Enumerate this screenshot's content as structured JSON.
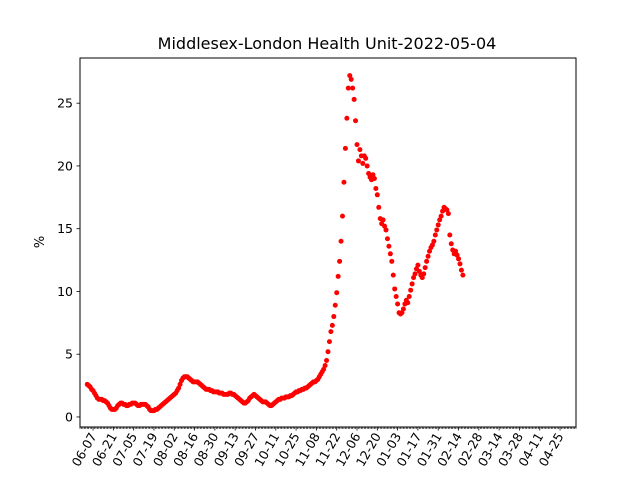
{
  "chart_data": {
    "type": "scatter",
    "title": "Middlesex-London Health Unit-2022-05-04",
    "xlabel": "",
    "ylabel": "%",
    "xlim": [
      "2021-05-29",
      "2022-05-06"
    ],
    "ylim": [
      -0.8,
      28.6
    ],
    "y_ticks": [
      0,
      5,
      10,
      15,
      20,
      25
    ],
    "x_ticks": [
      "06-07",
      "06-21",
      "07-05",
      "07-19",
      "08-02",
      "08-16",
      "08-30",
      "09-13",
      "09-27",
      "10-11",
      "10-25",
      "11-08",
      "11-22",
      "12-06",
      "12-20",
      "01-03",
      "01-17",
      "01-31",
      "02-14",
      "02-28",
      "03-14",
      "03-28",
      "04-11",
      "04-25"
    ],
    "marker_color": "#ff0000",
    "grid": false,
    "series": [
      {
        "points": [
          [
            "2021-06-03",
            2.6
          ],
          [
            "2021-06-04",
            2.5
          ],
          [
            "2021-06-05",
            2.4
          ],
          [
            "2021-06-06",
            2.2
          ],
          [
            "2021-06-07",
            2.1
          ],
          [
            "2021-06-08",
            1.9
          ],
          [
            "2021-06-09",
            1.7
          ],
          [
            "2021-06-10",
            1.5
          ],
          [
            "2021-06-11",
            1.4
          ],
          [
            "2021-06-12",
            1.4
          ],
          [
            "2021-06-13",
            1.4
          ],
          [
            "2021-06-14",
            1.3
          ],
          [
            "2021-06-15",
            1.3
          ],
          [
            "2021-06-16",
            1.2
          ],
          [
            "2021-06-17",
            1.1
          ],
          [
            "2021-06-18",
            0.9
          ],
          [
            "2021-06-19",
            0.7
          ],
          [
            "2021-06-20",
            0.6
          ],
          [
            "2021-06-21",
            0.6
          ],
          [
            "2021-06-22",
            0.6
          ],
          [
            "2021-06-23",
            0.7
          ],
          [
            "2021-06-24",
            0.9
          ],
          [
            "2021-06-25",
            1.0
          ],
          [
            "2021-06-26",
            1.1
          ],
          [
            "2021-06-27",
            1.1
          ],
          [
            "2021-06-28",
            1.0
          ],
          [
            "2021-06-29",
            1.0
          ],
          [
            "2021-06-30",
            0.9
          ],
          [
            "2021-07-01",
            0.9
          ],
          [
            "2021-07-02",
            1.0
          ],
          [
            "2021-07-03",
            1.0
          ],
          [
            "2021-07-04",
            1.1
          ],
          [
            "2021-07-05",
            1.1
          ],
          [
            "2021-07-06",
            1.1
          ],
          [
            "2021-07-07",
            1.0
          ],
          [
            "2021-07-08",
            0.9
          ],
          [
            "2021-07-09",
            0.9
          ],
          [
            "2021-07-10",
            1.0
          ],
          [
            "2021-07-11",
            1.0
          ],
          [
            "2021-07-12",
            1.0
          ],
          [
            "2021-07-13",
            1.0
          ],
          [
            "2021-07-14",
            0.9
          ],
          [
            "2021-07-15",
            0.8
          ],
          [
            "2021-07-16",
            0.6
          ],
          [
            "2021-07-17",
            0.5
          ],
          [
            "2021-07-18",
            0.5
          ],
          [
            "2021-07-19",
            0.5
          ],
          [
            "2021-07-20",
            0.6
          ],
          [
            "2021-07-21",
            0.6
          ],
          [
            "2021-07-22",
            0.7
          ],
          [
            "2021-07-23",
            0.8
          ],
          [
            "2021-07-24",
            0.9
          ],
          [
            "2021-07-25",
            1.0
          ],
          [
            "2021-07-26",
            1.1
          ],
          [
            "2021-07-27",
            1.2
          ],
          [
            "2021-07-28",
            1.3
          ],
          [
            "2021-07-29",
            1.4
          ],
          [
            "2021-07-30",
            1.5
          ],
          [
            "2021-07-31",
            1.6
          ],
          [
            "2021-08-01",
            1.7
          ],
          [
            "2021-08-02",
            1.8
          ],
          [
            "2021-08-03",
            1.9
          ],
          [
            "2021-08-04",
            2.1
          ],
          [
            "2021-08-05",
            2.3
          ],
          [
            "2021-08-06",
            2.6
          ],
          [
            "2021-08-07",
            2.9
          ],
          [
            "2021-08-08",
            3.1
          ],
          [
            "2021-08-09",
            3.2
          ],
          [
            "2021-08-10",
            3.2
          ],
          [
            "2021-08-11",
            3.2
          ],
          [
            "2021-08-12",
            3.1
          ],
          [
            "2021-08-13",
            3.0
          ],
          [
            "2021-08-14",
            2.9
          ],
          [
            "2021-08-15",
            2.8
          ],
          [
            "2021-08-16",
            2.8
          ],
          [
            "2021-08-17",
            2.8
          ],
          [
            "2021-08-18",
            2.8
          ],
          [
            "2021-08-19",
            2.7
          ],
          [
            "2021-08-20",
            2.6
          ],
          [
            "2021-08-21",
            2.5
          ],
          [
            "2021-08-22",
            2.4
          ],
          [
            "2021-08-23",
            2.3
          ],
          [
            "2021-08-24",
            2.2
          ],
          [
            "2021-08-25",
            2.2
          ],
          [
            "2021-08-26",
            2.2
          ],
          [
            "2021-08-27",
            2.1
          ],
          [
            "2021-08-28",
            2.1
          ],
          [
            "2021-08-29",
            2.0
          ],
          [
            "2021-08-30",
            2.0
          ],
          [
            "2021-08-31",
            2.0
          ],
          [
            "2021-09-01",
            2.0
          ],
          [
            "2021-09-02",
            1.9
          ],
          [
            "2021-09-03",
            1.9
          ],
          [
            "2021-09-04",
            1.9
          ],
          [
            "2021-09-05",
            1.8
          ],
          [
            "2021-09-06",
            1.8
          ],
          [
            "2021-09-07",
            1.8
          ],
          [
            "2021-09-08",
            1.8
          ],
          [
            "2021-09-09",
            1.9
          ],
          [
            "2021-09-10",
            1.9
          ],
          [
            "2021-09-11",
            1.8
          ],
          [
            "2021-09-12",
            1.8
          ],
          [
            "2021-09-13",
            1.7
          ],
          [
            "2021-09-14",
            1.6
          ],
          [
            "2021-09-15",
            1.5
          ],
          [
            "2021-09-16",
            1.4
          ],
          [
            "2021-09-17",
            1.3
          ],
          [
            "2021-09-18",
            1.2
          ],
          [
            "2021-09-19",
            1.1
          ],
          [
            "2021-09-20",
            1.1
          ],
          [
            "2021-09-21",
            1.2
          ],
          [
            "2021-09-22",
            1.3
          ],
          [
            "2021-09-23",
            1.5
          ],
          [
            "2021-09-24",
            1.6
          ],
          [
            "2021-09-25",
            1.7
          ],
          [
            "2021-09-26",
            1.8
          ],
          [
            "2021-09-27",
            1.7
          ],
          [
            "2021-09-28",
            1.6
          ],
          [
            "2021-09-29",
            1.5
          ],
          [
            "2021-09-30",
            1.4
          ],
          [
            "2021-10-01",
            1.3
          ],
          [
            "2021-10-02",
            1.2
          ],
          [
            "2021-10-03",
            1.2
          ],
          [
            "2021-10-04",
            1.2
          ],
          [
            "2021-10-05",
            1.1
          ],
          [
            "2021-10-06",
            1.0
          ],
          [
            "2021-10-07",
            0.9
          ],
          [
            "2021-10-08",
            0.9
          ],
          [
            "2021-10-09",
            1.0
          ],
          [
            "2021-10-10",
            1.1
          ],
          [
            "2021-10-11",
            1.2
          ],
          [
            "2021-10-12",
            1.3
          ],
          [
            "2021-10-13",
            1.4
          ],
          [
            "2021-10-14",
            1.4
          ],
          [
            "2021-10-15",
            1.5
          ],
          [
            "2021-10-16",
            1.5
          ],
          [
            "2021-10-17",
            1.5
          ],
          [
            "2021-10-18",
            1.6
          ],
          [
            "2021-10-19",
            1.6
          ],
          [
            "2021-10-20",
            1.6
          ],
          [
            "2021-10-21",
            1.7
          ],
          [
            "2021-10-22",
            1.7
          ],
          [
            "2021-10-23",
            1.8
          ],
          [
            "2021-10-24",
            1.9
          ],
          [
            "2021-10-25",
            2.0
          ],
          [
            "2021-10-26",
            2.0
          ],
          [
            "2021-10-27",
            2.1
          ],
          [
            "2021-10-28",
            2.1
          ],
          [
            "2021-10-29",
            2.2
          ],
          [
            "2021-10-30",
            2.2
          ],
          [
            "2021-10-31",
            2.3
          ],
          [
            "2021-11-01",
            2.3
          ],
          [
            "2021-11-02",
            2.4
          ],
          [
            "2021-11-03",
            2.5
          ],
          [
            "2021-11-04",
            2.6
          ],
          [
            "2021-11-05",
            2.7
          ],
          [
            "2021-11-06",
            2.8
          ],
          [
            "2021-11-07",
            2.8
          ],
          [
            "2021-11-08",
            2.9
          ],
          [
            "2021-11-09",
            3.0
          ],
          [
            "2021-11-10",
            3.2
          ],
          [
            "2021-11-11",
            3.4
          ],
          [
            "2021-11-12",
            3.6
          ],
          [
            "2021-11-13",
            3.8
          ],
          [
            "2021-11-14",
            4.1
          ],
          [
            "2021-11-15",
            4.5
          ],
          [
            "2021-11-16",
            5.2
          ],
          [
            "2021-11-17",
            6.0
          ],
          [
            "2021-11-18",
            6.8
          ],
          [
            "2021-11-19",
            7.3
          ],
          [
            "2021-11-20",
            8.0
          ],
          [
            "2021-11-21",
            8.9
          ],
          [
            "2021-11-22",
            9.9
          ],
          [
            "2021-11-23",
            11.2
          ],
          [
            "2021-11-24",
            12.4
          ],
          [
            "2021-11-25",
            14.0
          ],
          [
            "2021-11-26",
            16.0
          ],
          [
            "2021-11-27",
            18.7
          ],
          [
            "2021-11-28",
            21.4
          ],
          [
            "2021-11-29",
            23.8
          ],
          [
            "2021-11-30",
            26.2
          ],
          [
            "2021-12-01",
            27.2
          ],
          [
            "2021-12-02",
            26.9
          ],
          [
            "2021-12-03",
            26.2
          ],
          [
            "2021-12-04",
            25.3
          ],
          [
            "2021-12-05",
            23.6
          ],
          [
            "2021-12-06",
            21.7
          ],
          [
            "2021-12-07",
            20.4
          ],
          [
            "2021-12-08",
            21.3
          ],
          [
            "2021-12-09",
            20.8
          ],
          [
            "2021-12-10",
            20.2
          ],
          [
            "2021-12-11",
            20.8
          ],
          [
            "2021-12-12",
            20.6
          ],
          [
            "2021-12-13",
            20.0
          ],
          [
            "2021-12-14",
            19.4
          ],
          [
            "2021-12-15",
            19.1
          ],
          [
            "2021-12-16",
            18.9
          ],
          [
            "2021-12-17",
            19.3
          ],
          [
            "2021-12-18",
            19.0
          ],
          [
            "2021-12-19",
            18.2
          ],
          [
            "2021-12-20",
            17.7
          ],
          [
            "2021-12-21",
            16.7
          ],
          [
            "2021-12-22",
            15.8
          ],
          [
            "2021-12-23",
            15.4
          ],
          [
            "2021-12-24",
            15.7
          ],
          [
            "2021-12-25",
            15.2
          ],
          [
            "2021-12-26",
            14.9
          ],
          [
            "2021-12-27",
            14.2
          ],
          [
            "2021-12-28",
            13.6
          ],
          [
            "2021-12-29",
            13.0
          ],
          [
            "2021-12-30",
            12.4
          ],
          [
            "2021-12-31",
            11.3
          ],
          [
            "2022-01-01",
            10.2
          ],
          [
            "2022-01-02",
            9.6
          ],
          [
            "2022-01-03",
            9.0
          ],
          [
            "2022-01-04",
            8.3
          ],
          [
            "2022-01-05",
            8.2
          ],
          [
            "2022-01-06",
            8.3
          ],
          [
            "2022-01-07",
            8.6
          ],
          [
            "2022-01-08",
            9.0
          ],
          [
            "2022-01-09",
            9.3
          ],
          [
            "2022-01-10",
            9.1
          ],
          [
            "2022-01-11",
            9.6
          ],
          [
            "2022-01-12",
            10.1
          ],
          [
            "2022-01-13",
            10.6
          ],
          [
            "2022-01-14",
            11.1
          ],
          [
            "2022-01-15",
            11.4
          ],
          [
            "2022-01-16",
            11.8
          ],
          [
            "2022-01-17",
            12.1
          ],
          [
            "2022-01-18",
            11.6
          ],
          [
            "2022-01-19",
            11.3
          ],
          [
            "2022-01-20",
            11.1
          ],
          [
            "2022-01-21",
            11.4
          ],
          [
            "2022-01-22",
            11.9
          ],
          [
            "2022-01-23",
            12.4
          ],
          [
            "2022-01-24",
            12.8
          ],
          [
            "2022-01-25",
            13.2
          ],
          [
            "2022-01-26",
            13.5
          ],
          [
            "2022-01-27",
            13.7
          ],
          [
            "2022-01-28",
            14.0
          ],
          [
            "2022-01-29",
            14.5
          ],
          [
            "2022-01-30",
            14.9
          ],
          [
            "2022-01-31",
            15.3
          ],
          [
            "2022-02-01",
            15.7
          ],
          [
            "2022-02-02",
            16.0
          ],
          [
            "2022-02-03",
            16.4
          ],
          [
            "2022-02-04",
            16.7
          ],
          [
            "2022-02-05",
            16.6
          ],
          [
            "2022-02-06",
            16.5
          ],
          [
            "2022-02-07",
            16.2
          ],
          [
            "2022-02-08",
            14.5
          ],
          [
            "2022-02-09",
            13.8
          ],
          [
            "2022-02-10",
            13.3
          ],
          [
            "2022-02-11",
            13.0
          ],
          [
            "2022-02-12",
            13.2
          ],
          [
            "2022-02-13",
            12.9
          ],
          [
            "2022-02-14",
            12.6
          ],
          [
            "2022-02-15",
            12.2
          ],
          [
            "2022-02-16",
            11.7
          ],
          [
            "2022-02-17",
            11.3
          ]
        ]
      }
    ]
  }
}
